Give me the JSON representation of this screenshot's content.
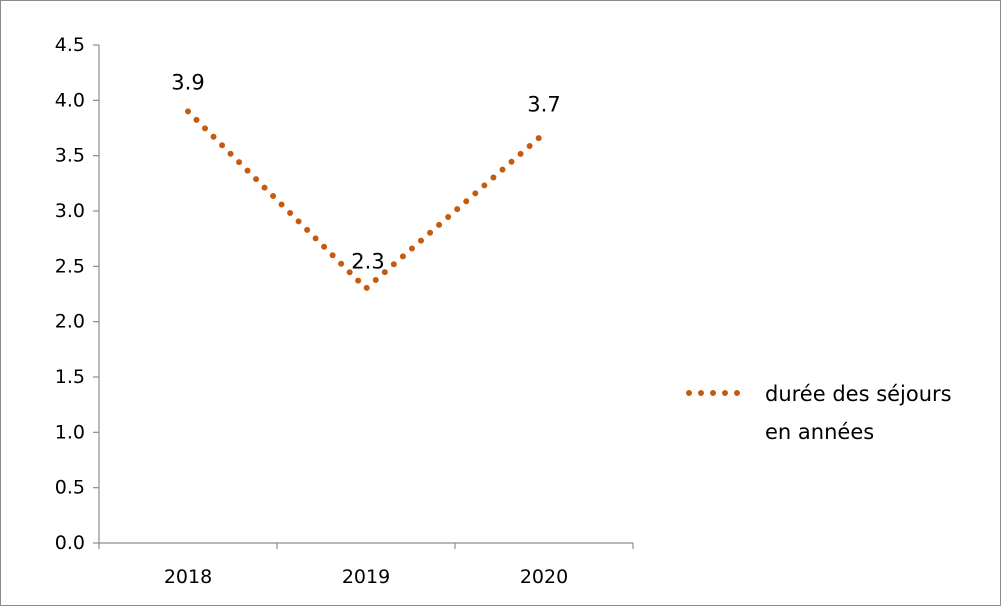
{
  "chart_data": {
    "type": "line",
    "categories": [
      "2018",
      "2019",
      "2020"
    ],
    "series": [
      {
        "name": "durée des séjours en années",
        "values": [
          3.9,
          2.3,
          3.7
        ],
        "color": "#c55a11",
        "line_style": "dotted"
      }
    ],
    "data_labels": [
      "3.9",
      "2.3",
      "3.7"
    ],
    "ylim": [
      0,
      4.5
    ],
    "y_ticks": [
      "0.0",
      "0.5",
      "1.0",
      "1.5",
      "2.0",
      "2.5",
      "3.0",
      "3.5",
      "4.0",
      "4.5"
    ],
    "grid": false,
    "legend": {
      "position": "right",
      "lines": [
        "durée des séjours",
        "en années"
      ]
    },
    "title": "",
    "xlabel": "",
    "ylabel": ""
  }
}
